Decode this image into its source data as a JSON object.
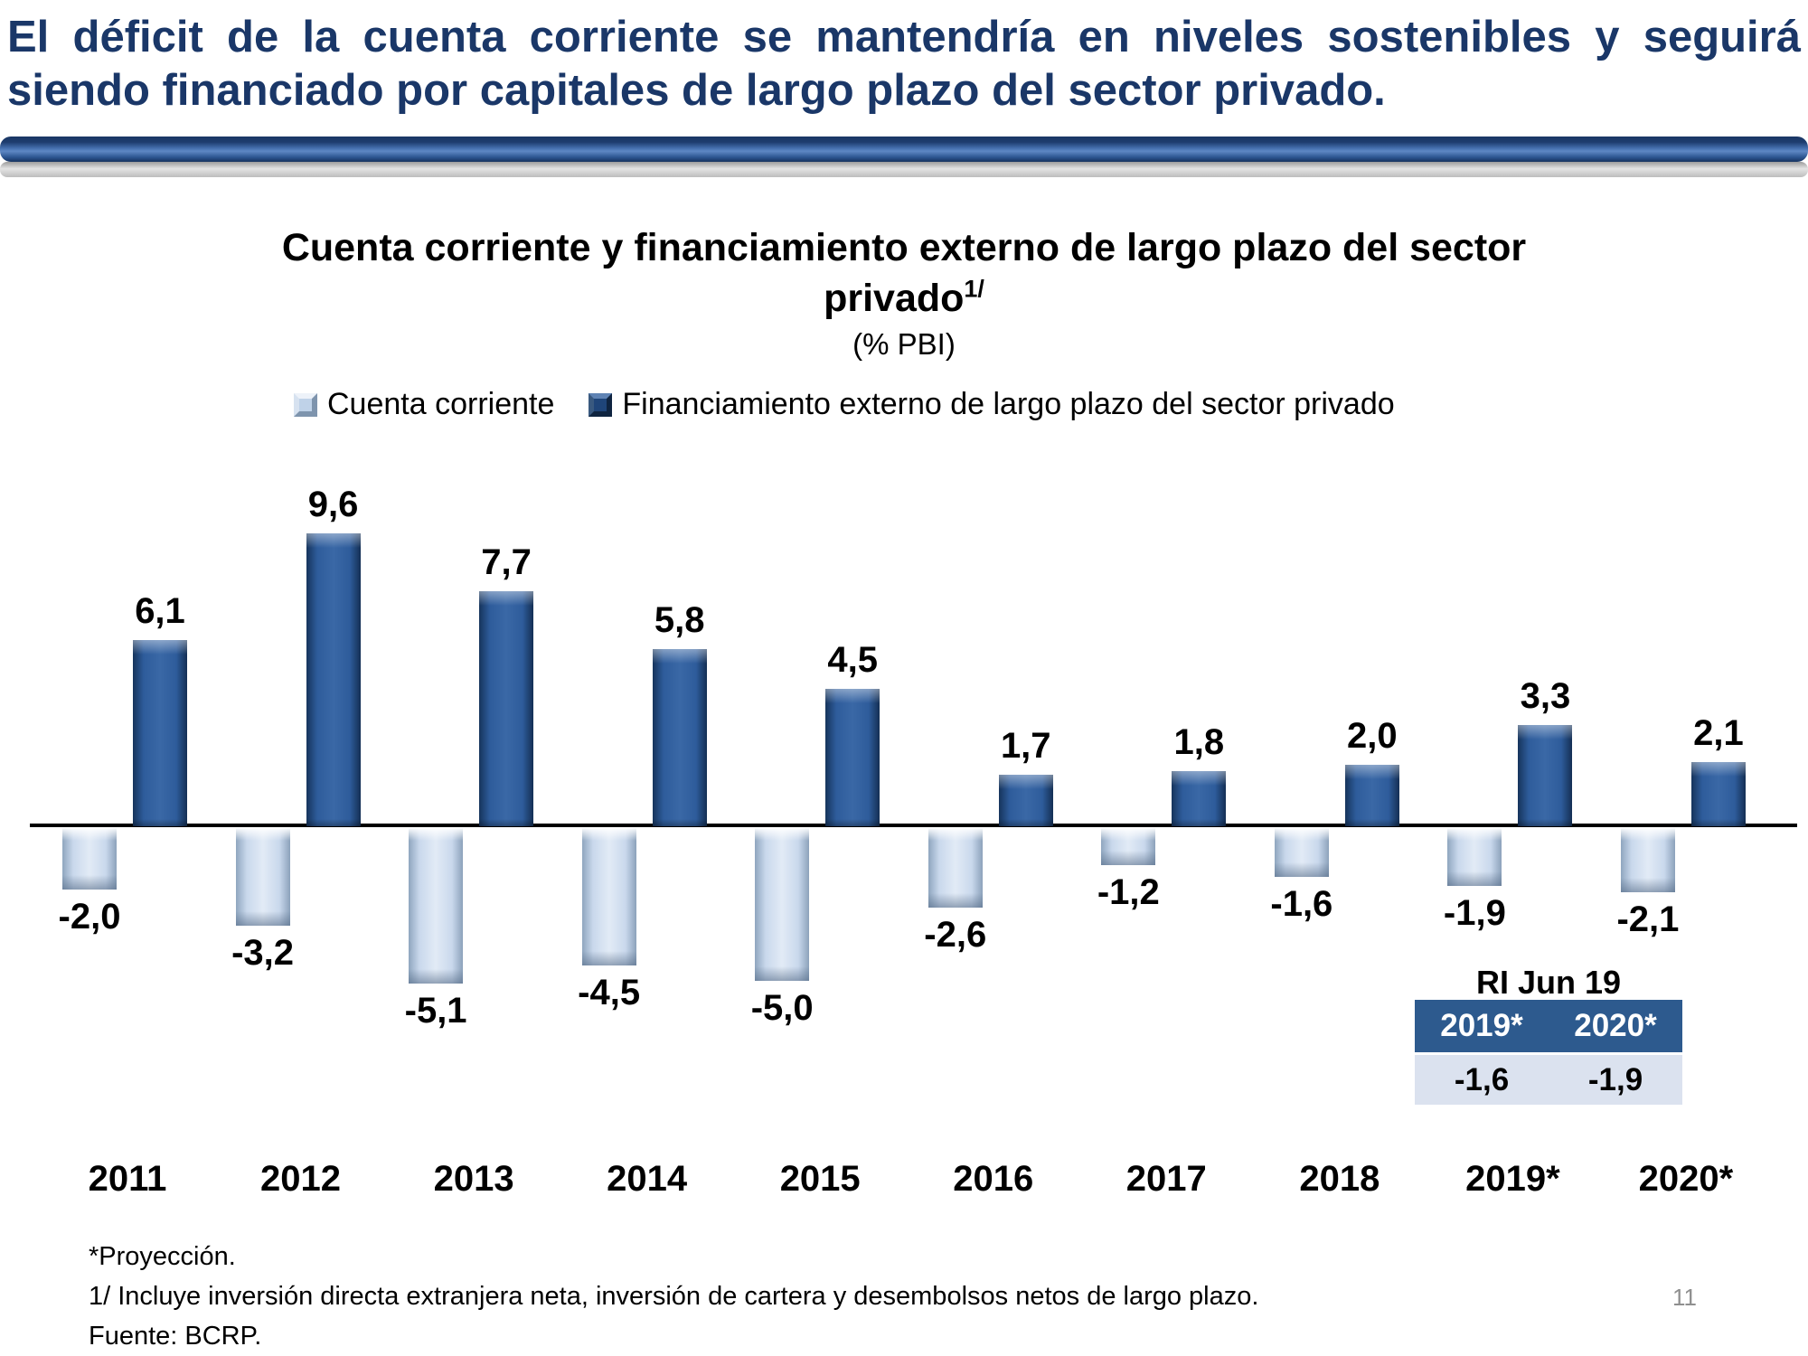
{
  "slide": {
    "title_line1": "El déficit de la cuenta corriente se mantendría en niveles sostenibles y seguirá",
    "title_line2": "siendo financiado por capitales de largo plazo del sector privado.",
    "page_number": "11"
  },
  "colors": {
    "title_navy": "#1A3768",
    "bar_dark": "#2E5C9B",
    "bar_light": "#C9D8EC",
    "table_header_bg": "#2D5A8E",
    "table_row_bg": "#DBE2EF",
    "axis": "#000000"
  },
  "chart": {
    "title_line1": "Cuenta corriente y financiamiento externo de largo plazo del sector",
    "title_line2_base": "privado",
    "title_superscript": "1/",
    "subtitle": "(% PBI)",
    "legend": [
      {
        "label": "Cuenta corriente",
        "swatch": "light"
      },
      {
        "label": "Financiamiento externo de largo plazo del sector privado",
        "swatch": "dark"
      }
    ]
  },
  "chart_data": {
    "type": "bar",
    "title": "Cuenta corriente y financiamiento externo de largo plazo del sector privado 1/",
    "subtitle": "(% PBI)",
    "xlabel": "",
    "ylabel": "% PBI",
    "ylim": [
      -6,
      10
    ],
    "grid": false,
    "legend_position": "top",
    "categories": [
      "2011",
      "2012",
      "2013",
      "2014",
      "2015",
      "2016",
      "2017",
      "2018",
      "2019*",
      "2020*"
    ],
    "series": [
      {
        "name": "Cuenta corriente",
        "color_hex": "#C9D8EC",
        "values": [
          -2.0,
          -3.2,
          -5.1,
          -4.5,
          -5.0,
          -2.6,
          -1.2,
          -1.6,
          -1.9,
          -2.1
        ],
        "labels": [
          "-2,0",
          "-3,2",
          "-5,1",
          "-4,5",
          "-5,0",
          "-2,6",
          "-1,2",
          "-1,6",
          "-1,9",
          "-2,1"
        ]
      },
      {
        "name": "Financiamiento externo de largo plazo del sector privado",
        "color_hex": "#2E5C9B",
        "values": [
          6.1,
          9.6,
          7.7,
          5.8,
          4.5,
          1.7,
          1.8,
          2.0,
          3.3,
          2.1
        ],
        "labels": [
          "6,1",
          "9,6",
          "7,7",
          "5,8",
          "4,5",
          "1,7",
          "1,8",
          "2,0",
          "3,3",
          "2,1"
        ]
      }
    ]
  },
  "ri_table": {
    "title": "RI Jun 19",
    "headers": [
      "2019*",
      "2020*"
    ],
    "values": [
      "-1,6",
      "-1,9"
    ]
  },
  "footnotes": {
    "line1": "*Proyección.",
    "line2": "1/ Incluye inversión directa extranjera neta, inversión de cartera y desembolsos netos de largo plazo.",
    "line3": "Fuente: BCRP."
  }
}
